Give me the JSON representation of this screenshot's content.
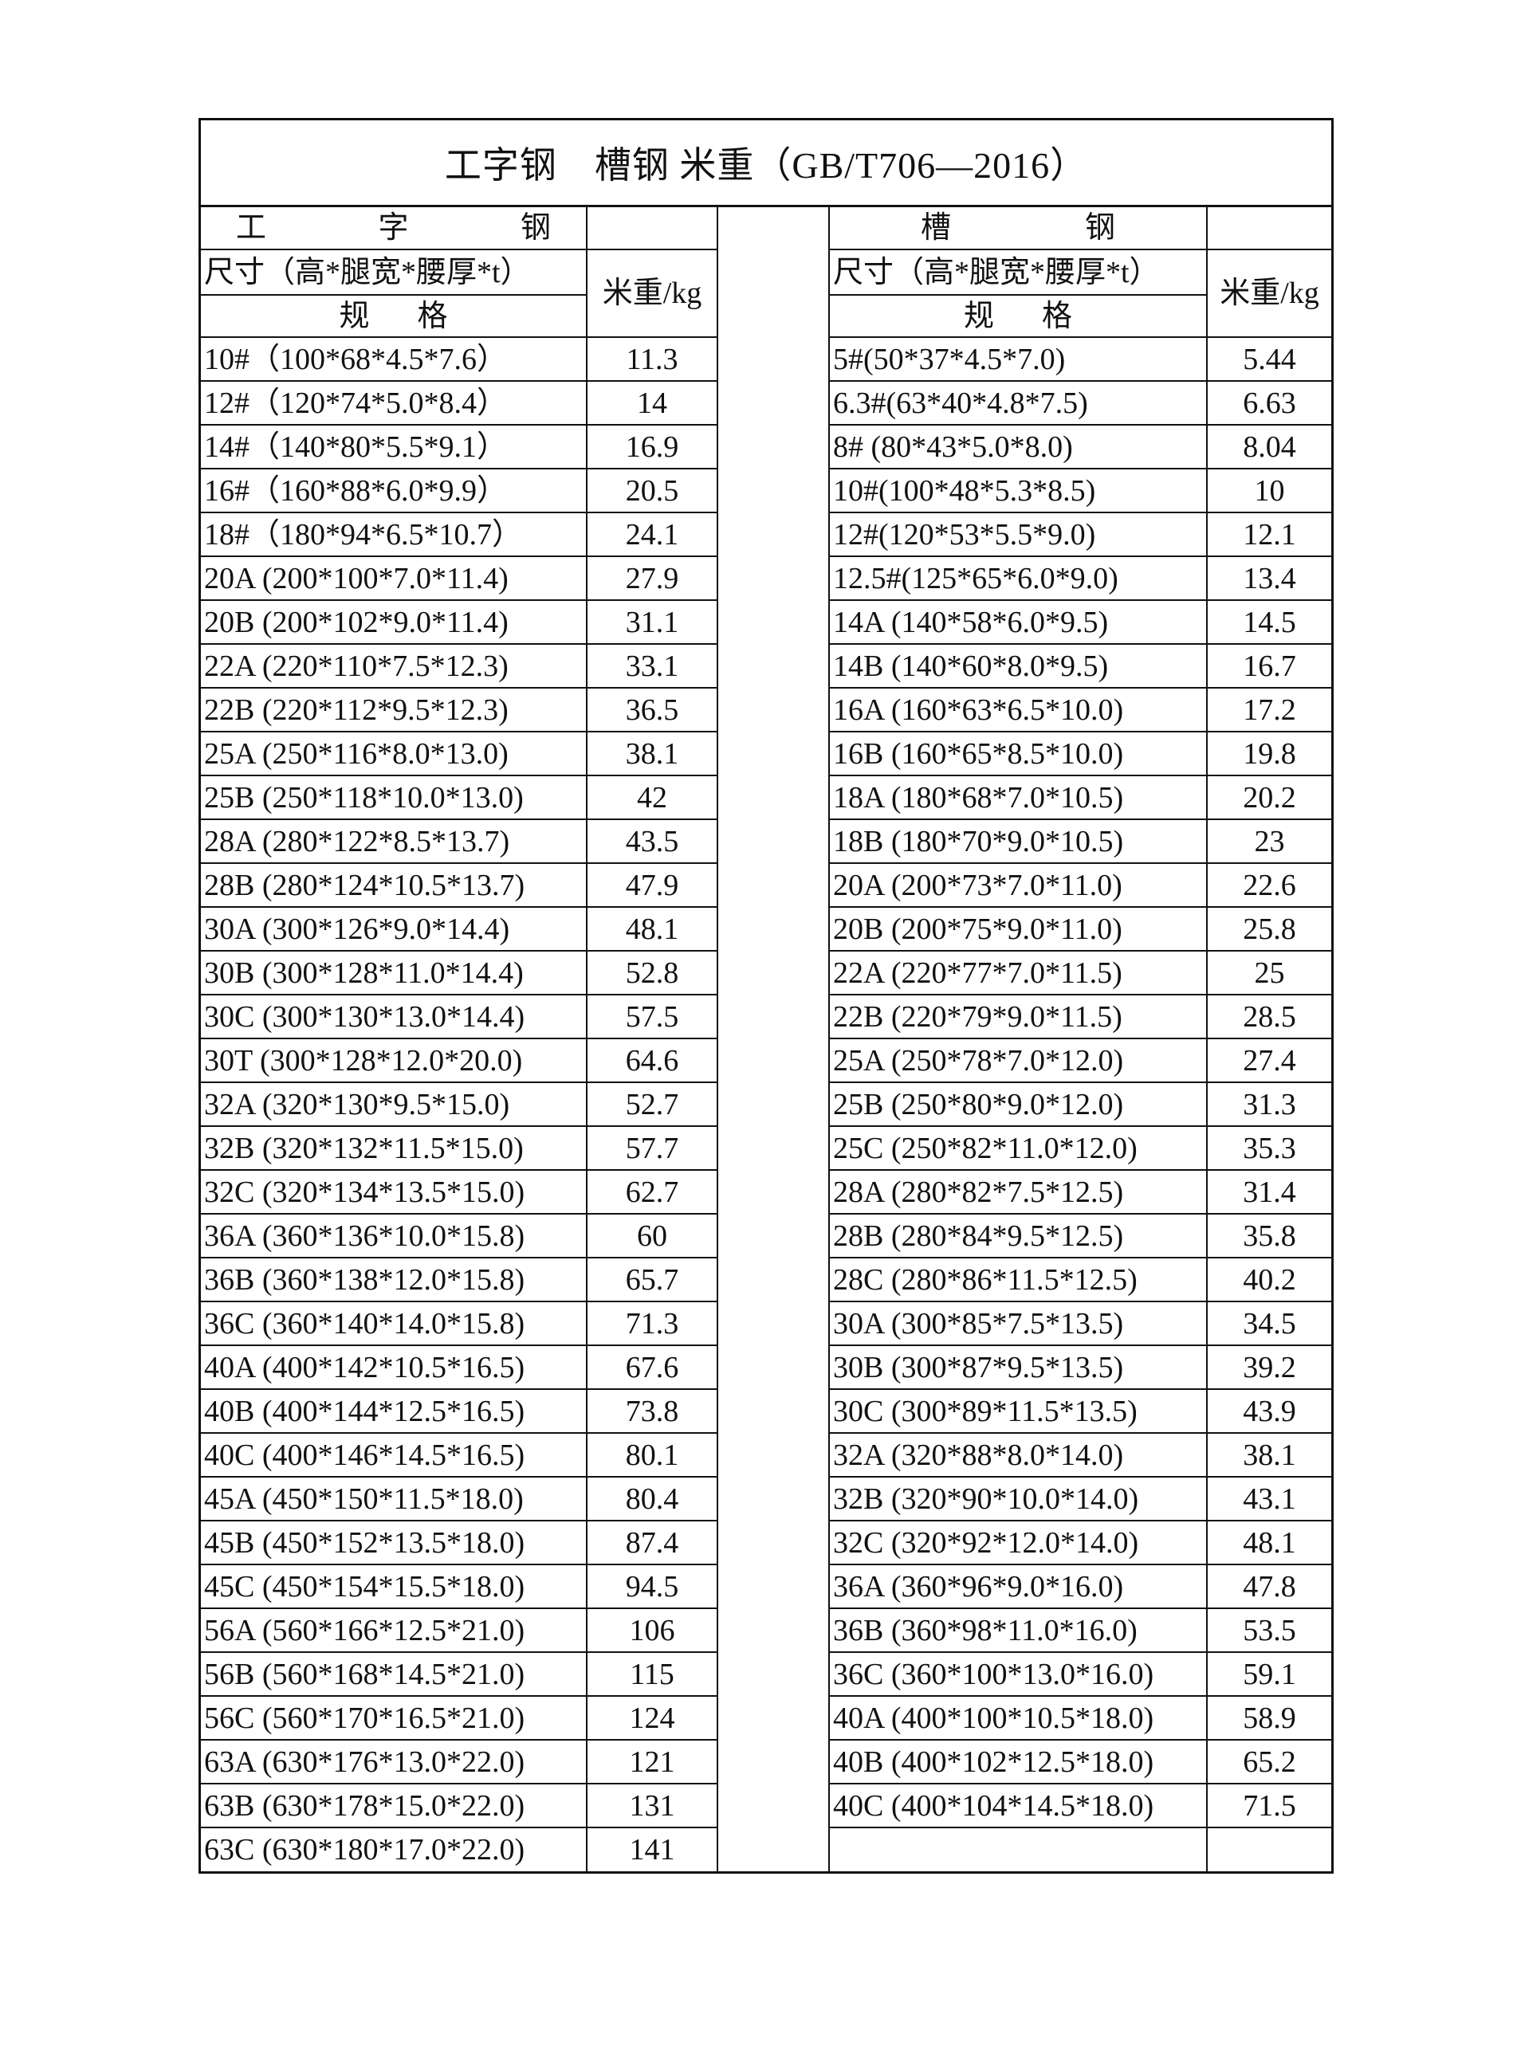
{
  "title": "工字钢　槽钢 米重（GB/T706—2016）",
  "i_beam": {
    "header": [
      "工",
      "字",
      "钢"
    ],
    "size_label": "尺寸（高*腿宽*腰厚*t）",
    "spec_label": [
      "规",
      "格"
    ],
    "weight_label": "米重/kg",
    "rows": [
      {
        "spec": "10#（100*68*4.5*7.6）",
        "weight": "11.3"
      },
      {
        "spec": "12#（120*74*5.0*8.4）",
        "weight": "14"
      },
      {
        "spec": "14#（140*80*5.5*9.1）",
        "weight": "16.9"
      },
      {
        "spec": "16#（160*88*6.0*9.9）",
        "weight": "20.5"
      },
      {
        "spec": "18#（180*94*6.5*10.7）",
        "weight": "24.1"
      },
      {
        "spec": "20A (200*100*7.0*11.4)",
        "weight": "27.9"
      },
      {
        "spec": "20B (200*102*9.0*11.4)",
        "weight": "31.1"
      },
      {
        "spec": "22A (220*110*7.5*12.3)",
        "weight": "33.1"
      },
      {
        "spec": "22B (220*112*9.5*12.3)",
        "weight": "36.5"
      },
      {
        "spec": "25A (250*116*8.0*13.0)",
        "weight": "38.1"
      },
      {
        "spec": "25B (250*118*10.0*13.0)",
        "weight": "42"
      },
      {
        "spec": "28A (280*122*8.5*13.7)",
        "weight": "43.5"
      },
      {
        "spec": "28B (280*124*10.5*13.7)",
        "weight": "47.9"
      },
      {
        "spec": "30A (300*126*9.0*14.4)",
        "weight": "48.1"
      },
      {
        "spec": "30B (300*128*11.0*14.4)",
        "weight": "52.8"
      },
      {
        "spec": "30C (300*130*13.0*14.4)",
        "weight": "57.5"
      },
      {
        "spec": "30T (300*128*12.0*20.0)",
        "weight": "64.6"
      },
      {
        "spec": "32A (320*130*9.5*15.0)",
        "weight": "52.7"
      },
      {
        "spec": "32B (320*132*11.5*15.0)",
        "weight": "57.7"
      },
      {
        "spec": "32C (320*134*13.5*15.0)",
        "weight": "62.7"
      },
      {
        "spec": "36A (360*136*10.0*15.8)",
        "weight": "60"
      },
      {
        "spec": "36B (360*138*12.0*15.8)",
        "weight": "65.7"
      },
      {
        "spec": "36C (360*140*14.0*15.8)",
        "weight": "71.3"
      },
      {
        "spec": "40A (400*142*10.5*16.5)",
        "weight": "67.6"
      },
      {
        "spec": "40B (400*144*12.5*16.5)",
        "weight": "73.8"
      },
      {
        "spec": "40C (400*146*14.5*16.5)",
        "weight": "80.1"
      },
      {
        "spec": "45A (450*150*11.5*18.0)",
        "weight": "80.4"
      },
      {
        "spec": "45B (450*152*13.5*18.0)",
        "weight": "87.4"
      },
      {
        "spec": "45C (450*154*15.5*18.0)",
        "weight": "94.5"
      },
      {
        "spec": "56A (560*166*12.5*21.0)",
        "weight": "106"
      },
      {
        "spec": "56B (560*168*14.5*21.0)",
        "weight": "115"
      },
      {
        "spec": "56C (560*170*16.5*21.0)",
        "weight": "124"
      },
      {
        "spec": "63A (630*176*13.0*22.0)",
        "weight": "121"
      },
      {
        "spec": "63B (630*178*15.0*22.0)",
        "weight": "131"
      },
      {
        "spec": "63C (630*180*17.0*22.0)",
        "weight": "141"
      }
    ]
  },
  "channel": {
    "header": [
      "槽",
      "钢"
    ],
    "size_label": "尺寸（高*腿宽*腰厚*t）",
    "spec_label": [
      "规",
      "格"
    ],
    "weight_label": "米重/kg",
    "rows": [
      {
        "spec": "5#(50*37*4.5*7.0)",
        "weight": "5.44"
      },
      {
        "spec": "6.3#(63*40*4.8*7.5)",
        "weight": "6.63"
      },
      {
        "spec": "8# (80*43*5.0*8.0)",
        "weight": "8.04"
      },
      {
        "spec": "10#(100*48*5.3*8.5)",
        "weight": "10"
      },
      {
        "spec": "12#(120*53*5.5*9.0)",
        "weight": "12.1"
      },
      {
        "spec": "12.5#(125*65*6.0*9.0)",
        "weight": "13.4"
      },
      {
        "spec": "14A (140*58*6.0*9.5)",
        "weight": "14.5"
      },
      {
        "spec": "14B (140*60*8.0*9.5)",
        "weight": "16.7"
      },
      {
        "spec": "16A (160*63*6.5*10.0)",
        "weight": "17.2"
      },
      {
        "spec": "16B (160*65*8.5*10.0)",
        "weight": "19.8"
      },
      {
        "spec": "18A (180*68*7.0*10.5)",
        "weight": "20.2"
      },
      {
        "spec": "18B (180*70*9.0*10.5)",
        "weight": "23"
      },
      {
        "spec": "20A (200*73*7.0*11.0)",
        "weight": "22.6"
      },
      {
        "spec": "20B (200*75*9.0*11.0)",
        "weight": "25.8"
      },
      {
        "spec": "22A (220*77*7.0*11.5)",
        "weight": "25"
      },
      {
        "spec": "22B (220*79*9.0*11.5)",
        "weight": "28.5"
      },
      {
        "spec": "25A (250*78*7.0*12.0)",
        "weight": "27.4"
      },
      {
        "spec": "25B (250*80*9.0*12.0)",
        "weight": "31.3"
      },
      {
        "spec": "25C (250*82*11.0*12.0)",
        "weight": "35.3"
      },
      {
        "spec": "28A (280*82*7.5*12.5)",
        "weight": "31.4"
      },
      {
        "spec": "28B (280*84*9.5*12.5)",
        "weight": "35.8"
      },
      {
        "spec": "28C (280*86*11.5*12.5)",
        "weight": "40.2"
      },
      {
        "spec": "30A  (300*85*7.5*13.5)",
        "weight": "34.5"
      },
      {
        "spec": "30B (300*87*9.5*13.5)",
        "weight": "39.2"
      },
      {
        "spec": "30C (300*89*11.5*13.5)",
        "weight": "43.9"
      },
      {
        "spec": "32A (320*88*8.0*14.0)",
        "weight": "38.1"
      },
      {
        "spec": "32B (320*90*10.0*14.0)",
        "weight": "43.1"
      },
      {
        "spec": "32C (320*92*12.0*14.0)",
        "weight": "48.1"
      },
      {
        "spec": "36A (360*96*9.0*16.0)",
        "weight": "47.8"
      },
      {
        "spec": "36B (360*98*11.0*16.0)",
        "weight": "53.5"
      },
      {
        "spec": "36C (360*100*13.0*16.0)",
        "weight": "59.1"
      },
      {
        "spec": "40A (400*100*10.5*18.0)",
        "weight": "58.9"
      },
      {
        "spec": "40B (400*102*12.5*18.0)",
        "weight": "65.2"
      },
      {
        "spec": "40C (400*104*14.5*18.0)",
        "weight": "71.5"
      },
      {
        "spec": "",
        "weight": ""
      }
    ]
  }
}
